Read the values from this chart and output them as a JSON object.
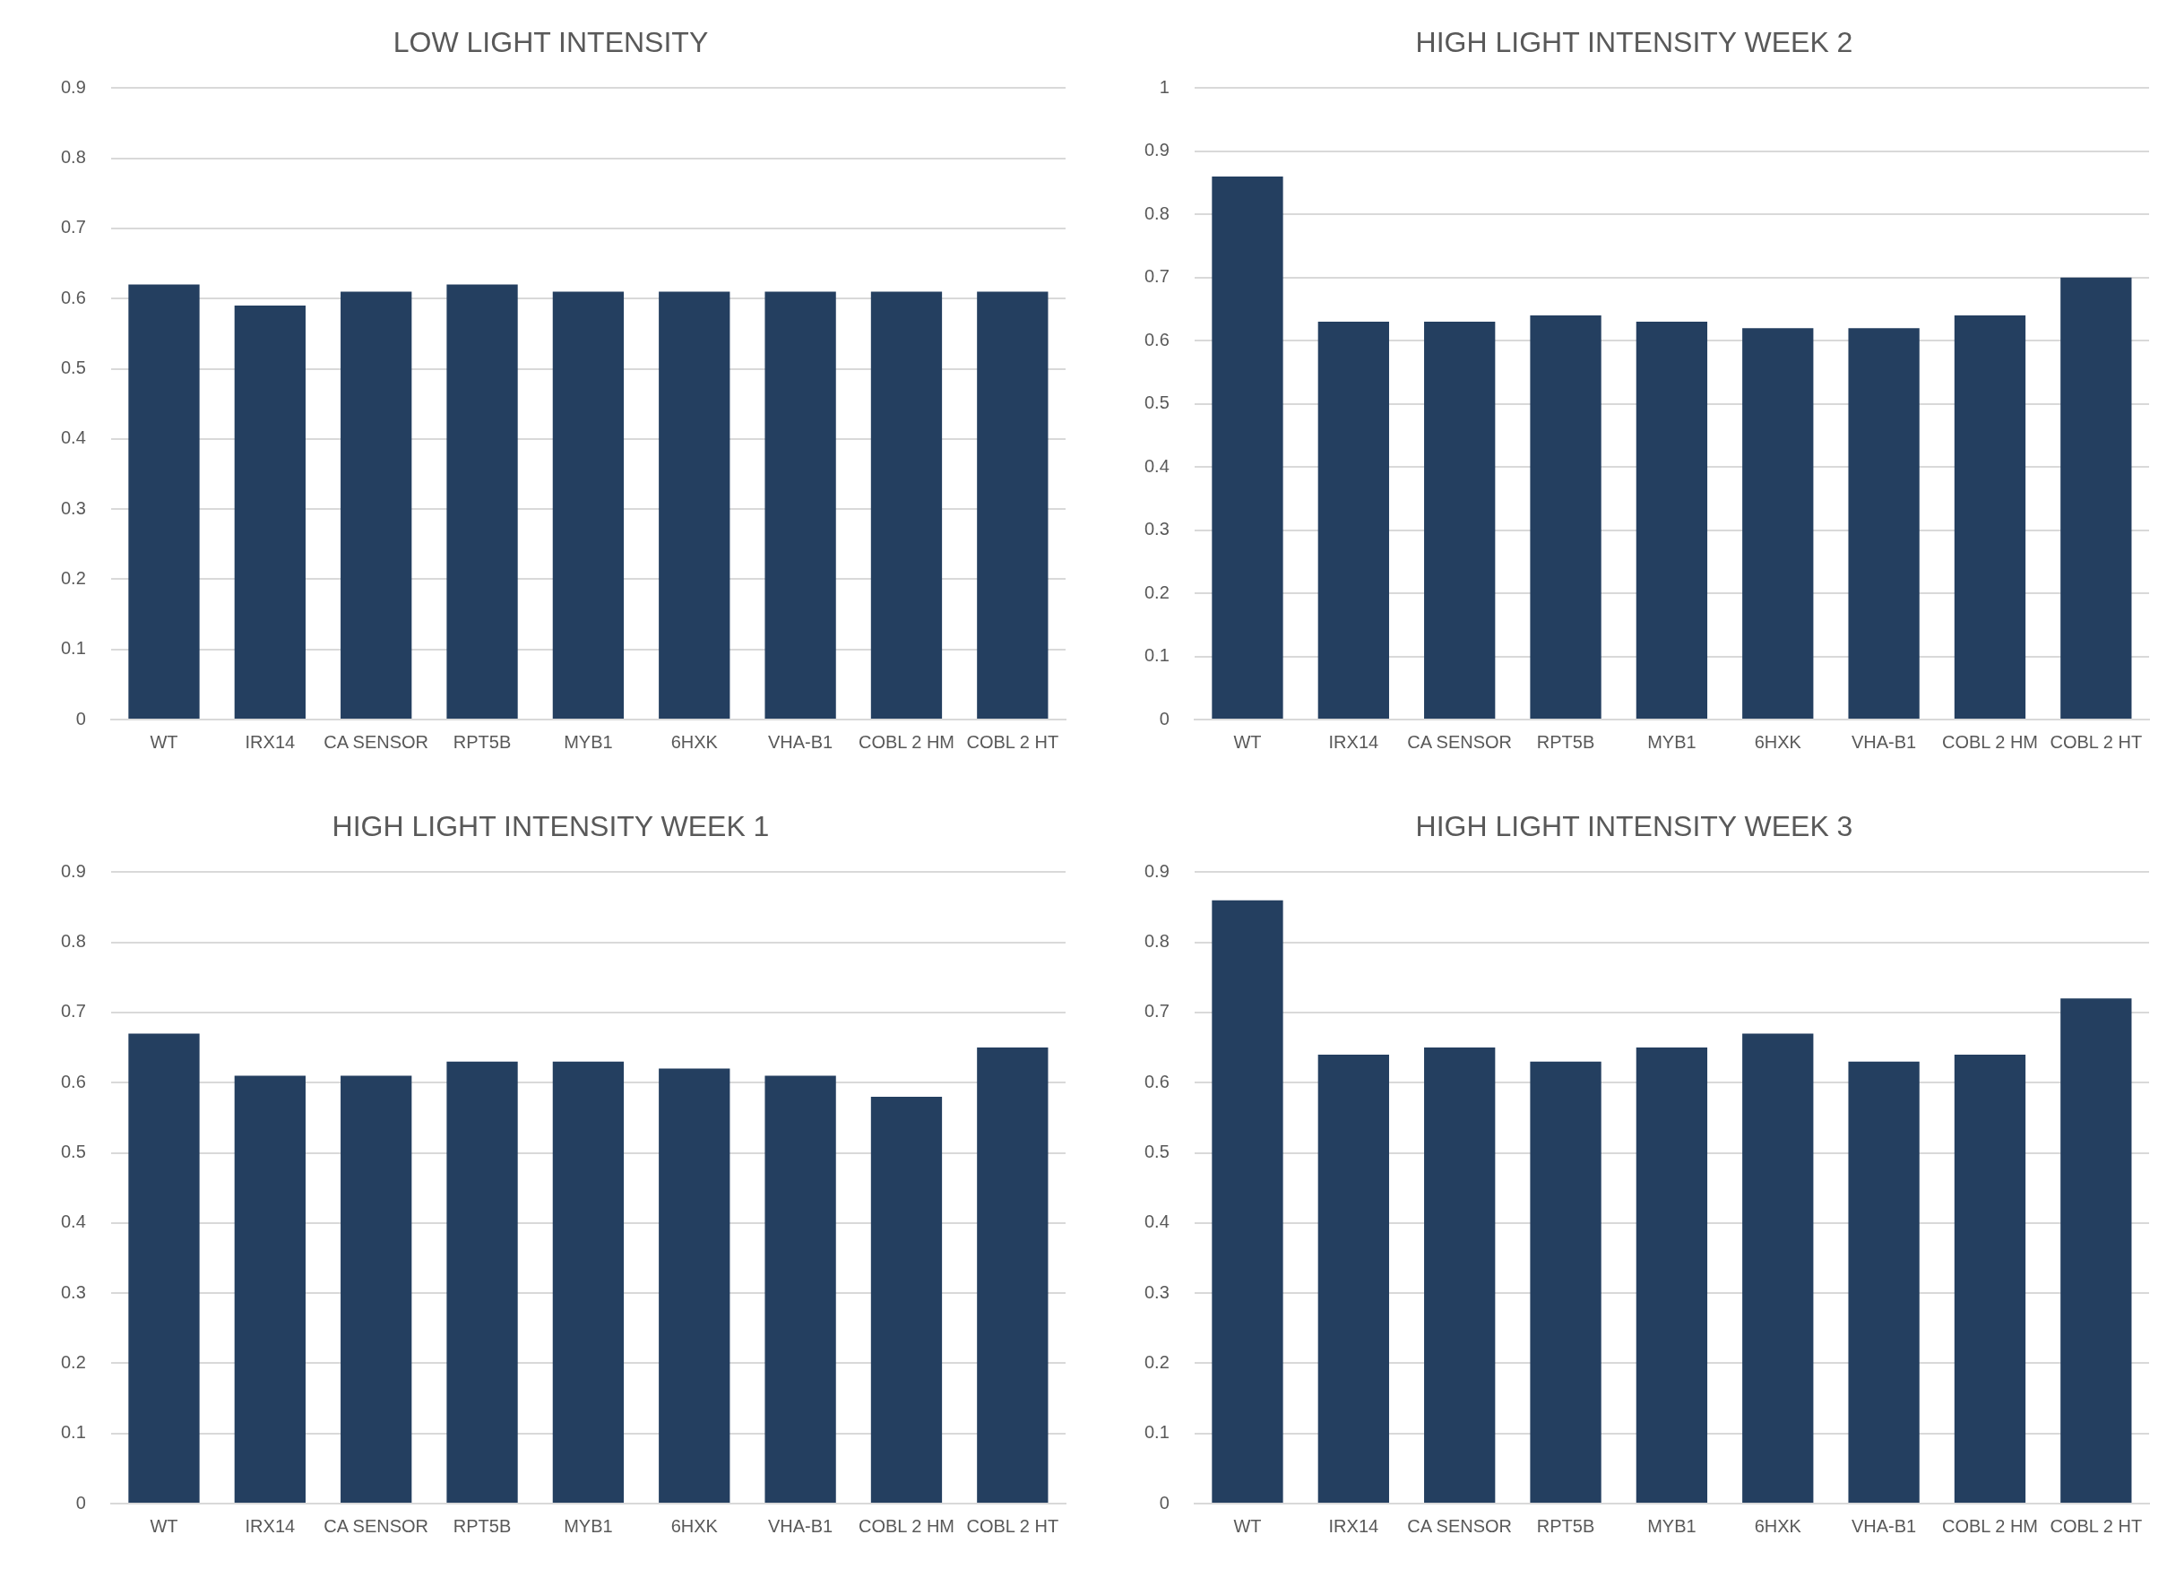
{
  "chart_data": [
    {
      "type": "bar",
      "title": "LOW LIGHT INTENSITY",
      "categories": [
        "WT",
        "IRX14",
        "CA SENSOR",
        "RPT5B",
        "MYB1",
        "6HXK",
        "VHA-B1",
        "COBL 2 HM",
        "COBL 2 HT"
      ],
      "values": [
        0.62,
        0.59,
        0.61,
        0.62,
        0.61,
        0.61,
        0.61,
        0.61,
        0.61
      ],
      "color": "#243f60",
      "ylim": [
        0,
        0.9
      ],
      "yticks": [
        0,
        0.1,
        0.2,
        0.3,
        0.4,
        0.5,
        0.6,
        0.7,
        0.8,
        0.9
      ],
      "grid": "y",
      "legend": false
    },
    {
      "type": "bar",
      "title": "HIGH LIGHT INTENSITY WEEK 2",
      "categories": [
        "WT",
        "IRX14",
        "CA SENSOR",
        "RPT5B",
        "MYB1",
        "6HXK",
        "VHA-B1",
        "COBL 2 HM",
        "COBL 2 HT"
      ],
      "values": [
        0.86,
        0.63,
        0.63,
        0.64,
        0.63,
        0.62,
        0.62,
        0.64,
        0.7
      ],
      "color": "#243f60",
      "ylim": [
        0,
        1
      ],
      "yticks": [
        0,
        0.1,
        0.2,
        0.3,
        0.4,
        0.5,
        0.6,
        0.7,
        0.8,
        0.9,
        1
      ],
      "grid": "y",
      "legend": false
    },
    {
      "type": "bar",
      "title": "HIGH LIGHT INTENSITY WEEK 1",
      "categories": [
        "WT",
        "IRX14",
        "CA SENSOR",
        "RPT5B",
        "MYB1",
        "6HXK",
        "VHA-B1",
        "COBL 2 HM",
        "COBL 2 HT"
      ],
      "values": [
        0.67,
        0.61,
        0.61,
        0.63,
        0.63,
        0.62,
        0.61,
        0.58,
        0.65
      ],
      "color": "#243f60",
      "ylim": [
        0,
        0.9
      ],
      "yticks": [
        0,
        0.1,
        0.2,
        0.3,
        0.4,
        0.5,
        0.6,
        0.7,
        0.8,
        0.9
      ],
      "grid": "y",
      "legend": false
    },
    {
      "type": "bar",
      "title": "HIGH LIGHT INTENSITY WEEK 3",
      "categories": [
        "WT",
        "IRX14",
        "CA SENSOR",
        "RPT5B",
        "MYB1",
        "6HXK",
        "VHA-B1",
        "COBL 2 HM",
        "COBL 2 HT"
      ],
      "values": [
        0.86,
        0.64,
        0.65,
        0.63,
        0.65,
        0.67,
        0.63,
        0.64,
        0.72
      ],
      "color": "#243f60",
      "ylim": [
        0,
        0.9
      ],
      "yticks": [
        0,
        0.1,
        0.2,
        0.3,
        0.4,
        0.5,
        0.6,
        0.7,
        0.8,
        0.9
      ],
      "grid": "y",
      "legend": false
    }
  ]
}
